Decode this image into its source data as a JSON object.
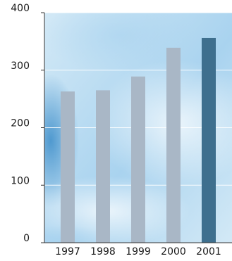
{
  "chart_data": {
    "type": "bar",
    "categories": [
      "1997",
      "1998",
      "1999",
      "2000",
      "2001"
    ],
    "values": [
      263,
      265,
      289,
      339,
      356
    ],
    "ylim": [
      0,
      400
    ],
    "yticks": [
      "0",
      "100",
      "200",
      "300",
      "400"
    ],
    "grid": true,
    "legend": "none",
    "colors": {
      "bar": "#a9b7c6",
      "bar_highlight": "#3e6f8e",
      "gridline": "#ffffff",
      "axis": "#333333",
      "text": "#1a1a1a",
      "background_light": "#d3e9f6",
      "background_mid": "#a9d3ef",
      "background_dark": "#3c8dc9"
    },
    "highlight_index": 4
  }
}
